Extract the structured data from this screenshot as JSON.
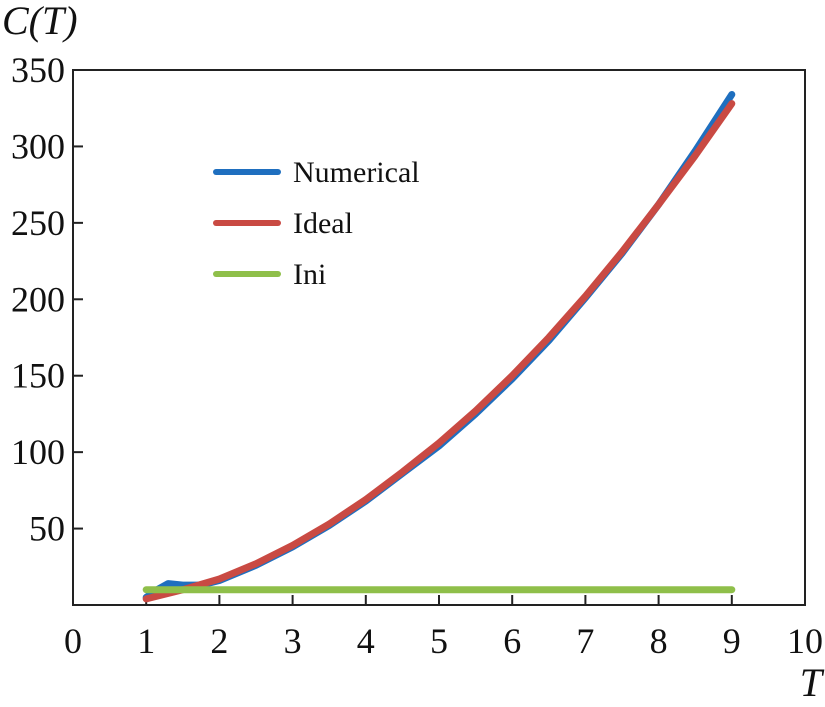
{
  "chart_data": {
    "type": "line",
    "title": "",
    "xlabel": "T",
    "ylabel": "C(T)",
    "xlim": [
      0,
      10
    ],
    "ylim": [
      0,
      350
    ],
    "x_ticks": [
      0,
      1,
      2,
      3,
      4,
      5,
      6,
      7,
      8,
      9,
      10
    ],
    "y_ticks": [
      50,
      100,
      150,
      200,
      250,
      300,
      350
    ],
    "grid": false,
    "legend_position": "upper-left",
    "series": [
      {
        "name": "Numerical",
        "color": "#1f6fbf",
        "x": [
          1.0,
          1.15,
          1.3,
          1.5,
          1.75,
          2.0,
          2.5,
          3.0,
          3.5,
          4.0,
          4.5,
          5.0,
          5.5,
          6.0,
          6.5,
          7.0,
          7.5,
          8.0,
          8.5,
          9.0
        ],
        "y": [
          5,
          10,
          14,
          13,
          13,
          16,
          26,
          38,
          52,
          68,
          86,
          104,
          125,
          148,
          173,
          201,
          230,
          262,
          297,
          334
        ]
      },
      {
        "name": "Ideal",
        "color": "#c94a43",
        "x": [
          1.0,
          1.5,
          2.0,
          2.5,
          3.0,
          3.5,
          4.0,
          4.5,
          5.0,
          5.5,
          6.0,
          6.5,
          7.0,
          7.5,
          8.0,
          8.5,
          9.0
        ],
        "y": [
          4,
          10,
          17,
          27,
          39,
          53,
          69,
          87,
          106,
          127,
          150,
          175,
          202,
          231,
          262,
          294,
          328
        ]
      },
      {
        "name": "Ini",
        "color": "#8fbf4a",
        "x": [
          1.0,
          9.0
        ],
        "y": [
          10,
          10
        ]
      }
    ]
  }
}
